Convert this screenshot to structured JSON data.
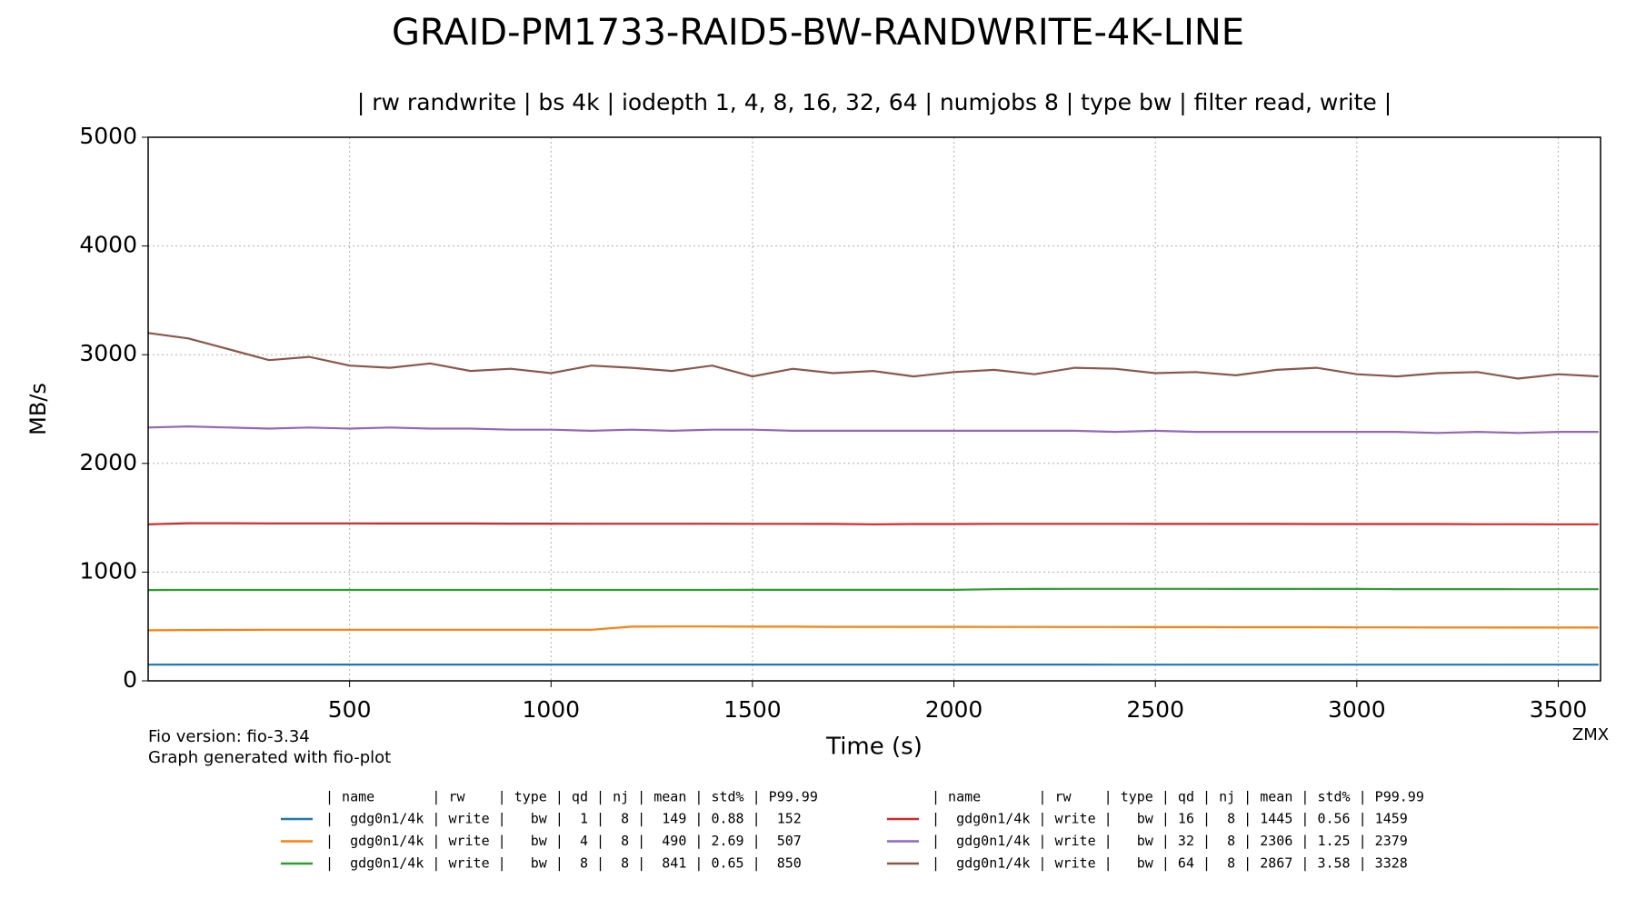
{
  "chart_data": {
    "type": "line",
    "title": "GRAID-PM1733-RAID5-BW-RANDWRITE-4K-LINE",
    "subtitle": "| rw randwrite | bs 4k | iodepth 1, 4, 8, 16, 32, 64 | numjobs 8 | type bw | filter read, write |",
    "x_label": "Time (s)",
    "y_label": "MB/s",
    "footnotes": [
      "Fio version: fio-3.34",
      "Graph generated with fio-plot"
    ],
    "corner_note": "ZMX",
    "legend_header": "| name       | rw    | type | qd | nj | mean | std% | P99.99",
    "xlim": [
      0,
      3605
    ],
    "xticks": [
      500,
      1000,
      1500,
      2000,
      2500,
      3000,
      3500
    ],
    "ylim": [
      0,
      5000
    ],
    "yticks": [
      0,
      1000,
      2000,
      3000,
      4000,
      5000
    ],
    "grid": true,
    "x": [
      0,
      100,
      200,
      300,
      400,
      500,
      600,
      700,
      800,
      900,
      1000,
      1100,
      1200,
      1300,
      1400,
      1500,
      1600,
      1700,
      1800,
      1900,
      2000,
      2100,
      2200,
      2300,
      2400,
      2500,
      2600,
      2700,
      2800,
      2900,
      3000,
      3100,
      3200,
      3300,
      3400,
      3500,
      3600
    ],
    "series": [
      {
        "name": "|  gdg0n1/4k | write |   bw |  1 |  8 |  149 | 0.88 |  152",
        "color": "#1f77b4",
        "values": [
          149,
          150,
          150,
          150,
          150,
          150,
          150,
          150,
          150,
          150,
          150,
          150,
          150,
          150,
          150,
          150,
          150,
          150,
          150,
          150,
          150,
          150,
          150,
          150,
          149,
          149,
          149,
          149,
          149,
          149,
          149,
          149,
          149,
          149,
          149,
          149,
          149
        ]
      },
      {
        "name": "|  gdg0n1/4k | write |   bw |  4 |  8 |  490 | 2.69 |  507",
        "color": "#ff7f0e",
        "values": [
          465,
          467,
          468,
          470,
          470,
          470,
          470,
          470,
          470,
          470,
          470,
          470,
          498,
          500,
          500,
          498,
          498,
          497,
          497,
          497,
          497,
          496,
          496,
          495,
          495,
          494,
          494,
          493,
          493,
          493,
          492,
          492,
          491,
          491,
          490,
          490,
          490
        ]
      },
      {
        "name": "|  gdg0n1/4k | write |   bw |  8 |  8 |  841 | 0.65 |  850",
        "color": "#2ca02c",
        "values": [
          835,
          836,
          836,
          836,
          836,
          836,
          836,
          836,
          836,
          836,
          836,
          836,
          836,
          836,
          836,
          837,
          837,
          837,
          837,
          837,
          837,
          843,
          845,
          846,
          846,
          846,
          846,
          845,
          845,
          845,
          845,
          844,
          844,
          844,
          843,
          843,
          843
        ]
      },
      {
        "name": "|  gdg0n1/4k | write |   bw | 16 |  8 | 1445 | 0.56 | 1459",
        "color": "#d62728",
        "values": [
          1440,
          1450,
          1450,
          1448,
          1448,
          1448,
          1447,
          1447,
          1447,
          1446,
          1446,
          1445,
          1445,
          1445,
          1445,
          1444,
          1444,
          1443,
          1440,
          1442,
          1442,
          1444,
          1444,
          1444,
          1444,
          1443,
          1443,
          1443,
          1443,
          1442,
          1442,
          1442,
          1442,
          1441,
          1441,
          1440,
          1440
        ]
      },
      {
        "name": "|  gdg0n1/4k | write |   bw | 32 |  8 | 2306 | 1.25 | 2379",
        "color": "#9467bd",
        "values": [
          2330,
          2340,
          2330,
          2320,
          2330,
          2320,
          2330,
          2320,
          2320,
          2310,
          2310,
          2300,
          2310,
          2300,
          2310,
          2310,
          2300,
          2300,
          2300,
          2300,
          2300,
          2300,
          2300,
          2300,
          2290,
          2300,
          2290,
          2290,
          2290,
          2290,
          2290,
          2290,
          2280,
          2290,
          2280,
          2290,
          2290
        ]
      },
      {
        "name": "|  gdg0n1/4k | write |   bw | 64 |  8 | 2867 | 3.58 | 3328",
        "color": "#8c564b",
        "values": [
          3200,
          3150,
          3050,
          2950,
          2980,
          2900,
          2880,
          2920,
          2850,
          2870,
          2830,
          2900,
          2880,
          2850,
          2900,
          2800,
          2870,
          2830,
          2850,
          2800,
          2840,
          2860,
          2820,
          2880,
          2870,
          2830,
          2840,
          2810,
          2860,
          2880,
          2820,
          2800,
          2830,
          2840,
          2780,
          2820,
          2800
        ]
      }
    ]
  }
}
